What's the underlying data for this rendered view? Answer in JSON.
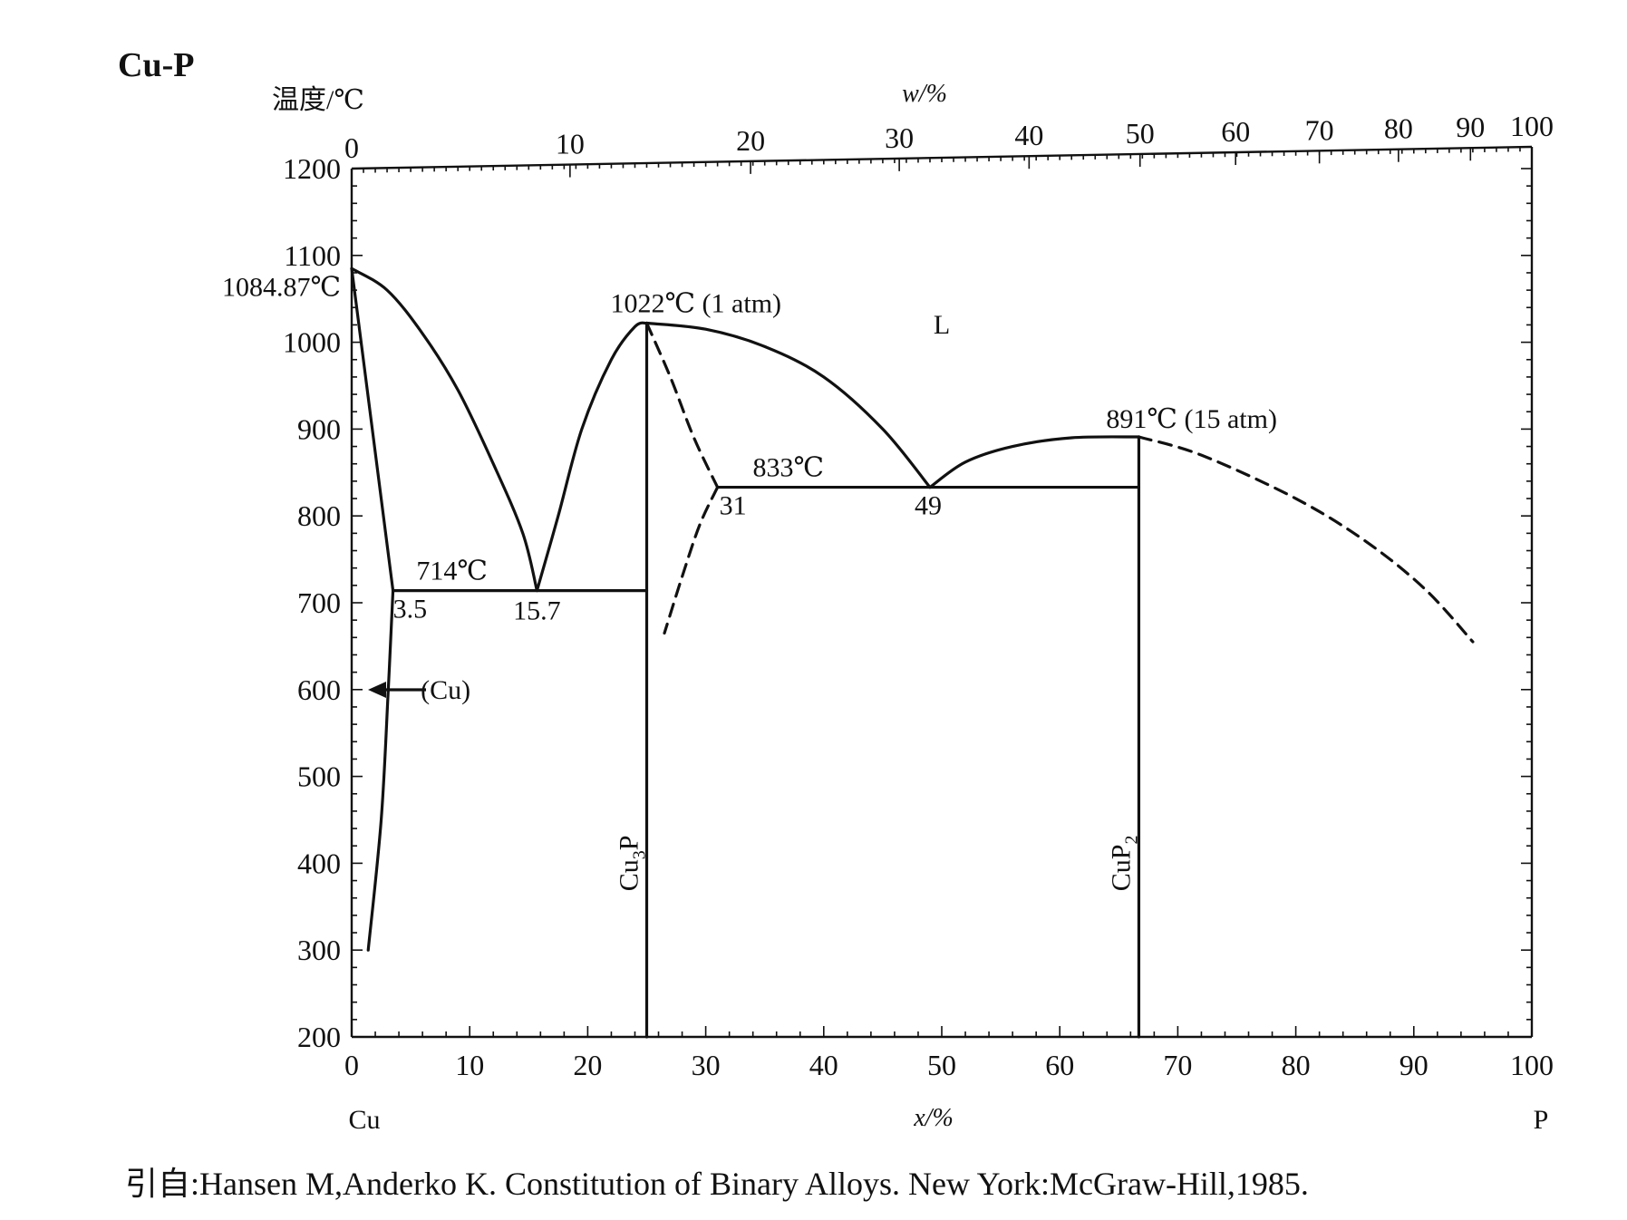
{
  "chart_data": {
    "type": "line",
    "title": "Cu-P",
    "ylabel": "温度/℃",
    "xlabel": "x/%",
    "x2label": "w/%",
    "ylim": [
      200,
      1200
    ],
    "xlim": [
      0,
      100
    ],
    "yticks": [
      200,
      300,
      400,
      500,
      600,
      700,
      800,
      900,
      1000,
      1100,
      1200
    ],
    "xticks": [
      0,
      10,
      20,
      30,
      40,
      50,
      60,
      70,
      80,
      90,
      100
    ],
    "x2ticks": [
      {
        "label": "0",
        "x": 0
      },
      {
        "label": "10",
        "x": 18.5
      },
      {
        "label": "20",
        "x": 33.8
      },
      {
        "label": "30",
        "x": 46.4
      },
      {
        "label": "40",
        "x": 57.4
      },
      {
        "label": "50",
        "x": 66.8
      },
      {
        "label": "60",
        "x": 74.9
      },
      {
        "label": "70",
        "x": 82.0
      },
      {
        "label": "80",
        "x": 88.7
      },
      {
        "label": "90",
        "x": 94.8
      },
      {
        "label": "100",
        "x": 100
      }
    ],
    "left_element": "Cu",
    "right_element": "P",
    "series": [
      {
        "name": "liquidus-cu-side",
        "style": "solid",
        "points": [
          [
            0,
            1084.87
          ],
          [
            3,
            1060
          ],
          [
            6,
            1010
          ],
          [
            9,
            945
          ],
          [
            12,
            860
          ],
          [
            14.5,
            780
          ],
          [
            15.7,
            714
          ]
        ]
      },
      {
        "name": "liquidus-cu3p-left",
        "style": "solid",
        "points": [
          [
            15.7,
            714
          ],
          [
            17.5,
            800
          ],
          [
            19.5,
            900
          ],
          [
            22,
            980
          ],
          [
            24,
            1018
          ],
          [
            25,
            1022
          ]
        ]
      },
      {
        "name": "liquidus-cu3p-right",
        "style": "solid",
        "points": [
          [
            25,
            1022
          ],
          [
            30,
            1015
          ],
          [
            35,
            995
          ],
          [
            40,
            960
          ],
          [
            45,
            900
          ],
          [
            49,
            833
          ]
        ]
      },
      {
        "name": "liquidus-cup2-left",
        "style": "solid",
        "points": [
          [
            49,
            833
          ],
          [
            52,
            862
          ],
          [
            56,
            880
          ],
          [
            61,
            890
          ],
          [
            66.7,
            891
          ]
        ]
      },
      {
        "name": "solidus-cu",
        "style": "solid",
        "points": [
          [
            0,
            1084.87
          ],
          [
            3.5,
            714
          ]
        ]
      },
      {
        "name": "solvus-cu",
        "style": "solid",
        "points": [
          [
            3.5,
            714
          ],
          [
            3.1,
            600
          ],
          [
            2.5,
            450
          ],
          [
            1.4,
            300
          ]
        ]
      },
      {
        "name": "eutectic-714",
        "style": "solid",
        "points": [
          [
            3.5,
            714
          ],
          [
            25,
            714
          ]
        ]
      },
      {
        "name": "eutectic-833",
        "style": "solid",
        "points": [
          [
            31,
            833
          ],
          [
            66.7,
            833
          ]
        ]
      },
      {
        "name": "cu3p-line",
        "style": "solid",
        "points": [
          [
            25,
            1022
          ],
          [
            25,
            200
          ]
        ]
      },
      {
        "name": "cup2-line",
        "style": "solid",
        "points": [
          [
            66.7,
            891
          ],
          [
            66.7,
            200
          ]
        ]
      },
      {
        "name": "dashed-cu3p-solvus",
        "style": "dashed",
        "points": [
          [
            25,
            1022
          ],
          [
            27,
            960
          ],
          [
            29,
            890
          ],
          [
            31,
            833
          ]
        ]
      },
      {
        "name": "dashed-31-down",
        "style": "dashed",
        "points": [
          [
            31,
            833
          ],
          [
            29.5,
            790
          ],
          [
            28,
            730
          ],
          [
            26.5,
            665
          ]
        ]
      },
      {
        "name": "dashed-liquidus-p",
        "style": "dashed",
        "points": [
          [
            66.7,
            891
          ],
          [
            72,
            870
          ],
          [
            80,
            820
          ],
          [
            86,
            770
          ],
          [
            91,
            715
          ],
          [
            95,
            655
          ]
        ]
      }
    ],
    "annotations": [
      {
        "text": "1084.87℃",
        "x": 0,
        "y": 1084.87
      },
      {
        "text": "1022℃ (1 atm)",
        "x": 25,
        "y": 1022
      },
      {
        "text": "L",
        "x": 50,
        "y": 1010
      },
      {
        "text": "891℃ (15 atm)",
        "x": 66.7,
        "y": 891
      },
      {
        "text": "833℃",
        "x": 37,
        "y": 833
      },
      {
        "text": "31",
        "x": 31,
        "y": 833
      },
      {
        "text": "49",
        "x": 49,
        "y": 833
      },
      {
        "text": "714℃",
        "x": 8.5,
        "y": 714
      },
      {
        "text": "3.5",
        "x": 3.5,
        "y": 714
      },
      {
        "text": "15.7",
        "x": 15.7,
        "y": 714
      },
      {
        "text": "(Cu)",
        "x": 6,
        "y": 600
      },
      {
        "text": "Cu3P",
        "x": 25,
        "y": 400
      },
      {
        "text": "CuP2",
        "x": 66.7,
        "y": 400
      }
    ]
  },
  "source": "引自:Hansen M,Anderko K. Constitution of Binary Alloys. New York:McGraw-Hill,1985."
}
